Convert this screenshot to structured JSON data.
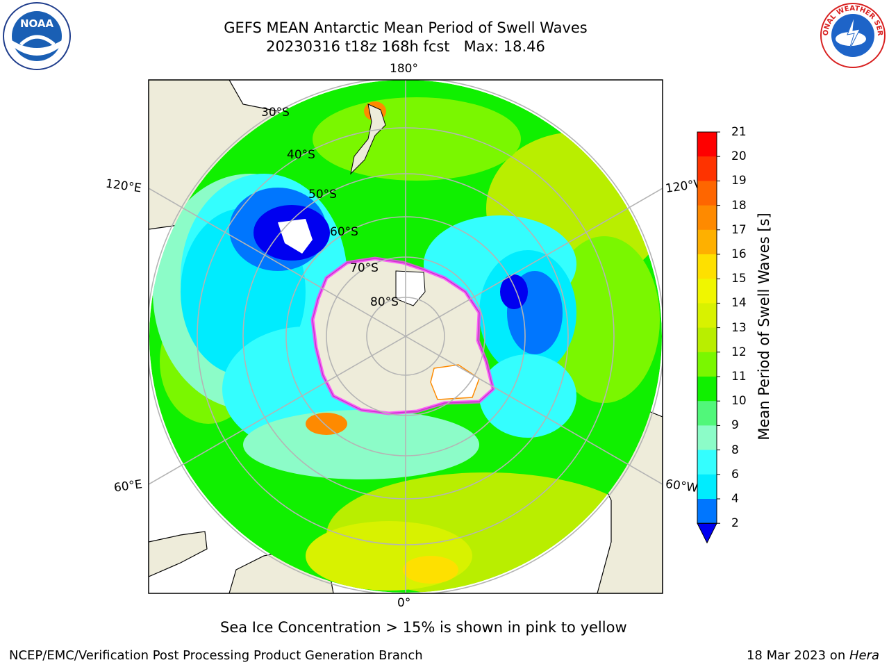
{
  "header": {
    "title_line1": "GEFS MEAN Antarctic Mean Period of Swell Waves",
    "title_line2": "20230316 t18z 168h fcst   Max: 18.46"
  },
  "logos": {
    "left": "NOAA",
    "right": "NATIONAL WEATHER SERVICE"
  },
  "map": {
    "labels": {
      "top": "180°",
      "bottom": "0°",
      "left_upper": "120°E",
      "left_lower": "60°E",
      "right_upper": "120°W",
      "right_lower": "60°W",
      "lat30": "30°S",
      "lat40": "40°S",
      "lat50": "50°S",
      "lat60": "60°S",
      "lat70": "70°S",
      "lat80": "80°S"
    },
    "colors": {
      "land": "#eeecda",
      "grid": "#b4b4b4"
    }
  },
  "colorbar": {
    "label": "Mean Period of Swell Waves [s]",
    "ticks": [
      "21",
      "20",
      "19",
      "18",
      "17",
      "16",
      "15",
      "14",
      "13",
      "12",
      "11",
      "10",
      "9",
      "8",
      "6",
      "4",
      "2"
    ],
    "colors": [
      "#fe0000",
      "#fe3300",
      "#fe6600",
      "#fe8a00",
      "#feb000",
      "#fee000",
      "#f0f600",
      "#d8f200",
      "#b9ee00",
      "#7af700",
      "#10f000",
      "#51f77a",
      "#8cfcc8",
      "#34fefe",
      "#00ecfe",
      "#0076fe"
    ],
    "under_color": "#0000f0"
  },
  "footer": {
    "note": "Sea Ice Concentration > 15% is shown in pink to yellow",
    "credit": "NCEP/EMC/Verification Post Processing Product Generation Branch",
    "date_text": "18 Mar 2023 on ",
    "host": "Hera"
  }
}
